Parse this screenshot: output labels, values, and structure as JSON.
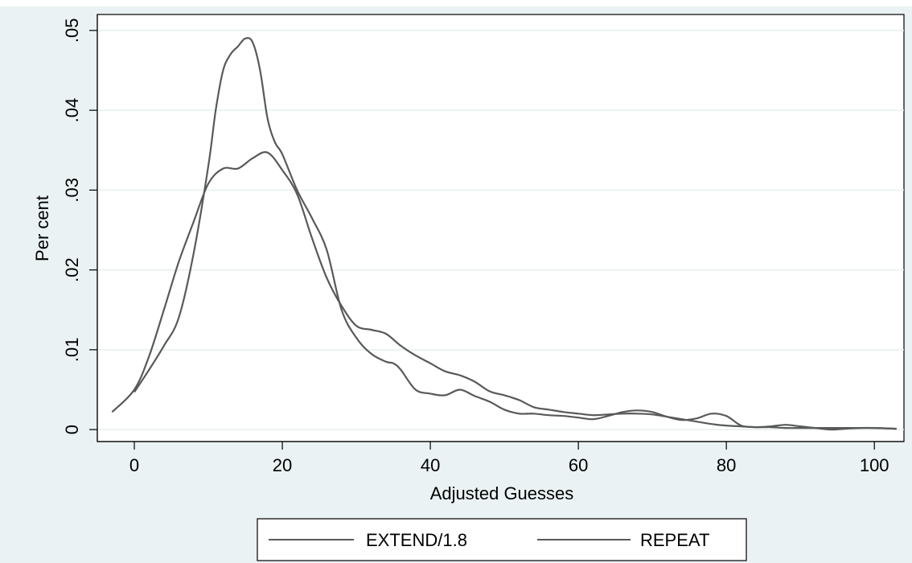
{
  "chart_data": {
    "type": "line",
    "title": "",
    "xlabel": "Adjusted Guesses",
    "ylabel": "Per cent",
    "xlim": [
      -5,
      104
    ],
    "ylim": [
      -0.0015,
      0.052
    ],
    "x_ticks": [
      0,
      20,
      40,
      60,
      80,
      100
    ],
    "x_tick_labels": [
      "0",
      "20",
      "40",
      "60",
      "80",
      "100"
    ],
    "y_ticks": [
      0,
      0.01,
      0.02,
      0.03,
      0.04,
      0.05
    ],
    "y_tick_labels": [
      "0",
      ".01",
      ".02",
      ".03",
      ".04",
      ".05"
    ],
    "grid": "horizontal",
    "legend_position": "bottom",
    "line_color": "#595959",
    "series": [
      {
        "name": "EXTEND/1.8",
        "x": [
          -3,
          0,
          2,
          4,
          6,
          8,
          10,
          12,
          14,
          16,
          18,
          20,
          22,
          24,
          26,
          28,
          30,
          32,
          34,
          36,
          38,
          40,
          42,
          44,
          46,
          48,
          50,
          52,
          54,
          56,
          58,
          60,
          62,
          64,
          66,
          68,
          70,
          72,
          74,
          76,
          78,
          80,
          82,
          84,
          86,
          88,
          90,
          92,
          94,
          96,
          98,
          100,
          103
        ],
        "y": [
          0.0022,
          0.005,
          0.0092,
          0.015,
          0.021,
          0.026,
          0.0308,
          0.0327,
          0.0327,
          0.034,
          0.0347,
          0.0325,
          0.0295,
          0.024,
          0.019,
          0.0155,
          0.013,
          0.0125,
          0.012,
          0.0105,
          0.0093,
          0.0083,
          0.0073,
          0.0068,
          0.006,
          0.0048,
          0.0043,
          0.0037,
          0.0028,
          0.0025,
          0.0022,
          0.002,
          0.0018,
          0.0019,
          0.002,
          0.002,
          0.0019,
          0.0016,
          0.0013,
          0.001,
          0.0007,
          0.0005,
          0.0004,
          0.0003,
          0.0003,
          0.0002,
          0.0002,
          0.0002,
          0.0002,
          0.0002,
          0.0002,
          0.0002,
          0.0001
        ]
      },
      {
        "name": "REPEAT",
        "x": [
          0,
          2,
          4,
          6,
          8,
          10,
          11,
          12,
          13,
          14,
          15,
          16,
          17,
          18,
          19,
          20,
          22,
          24,
          26,
          28,
          30,
          32,
          34,
          35,
          36,
          38,
          40,
          42,
          44,
          46,
          48,
          50,
          52,
          54,
          56,
          58,
          60,
          62,
          64,
          66,
          68,
          70,
          72,
          74,
          76,
          78,
          80,
          82,
          84,
          86,
          88,
          90,
          92,
          94,
          96,
          98,
          100,
          103
        ],
        "y": [
          0.0047,
          0.0075,
          0.0105,
          0.014,
          0.022,
          0.033,
          0.04,
          0.045,
          0.047,
          0.048,
          0.049,
          0.0485,
          0.045,
          0.039,
          0.036,
          0.0345,
          0.03,
          0.0265,
          0.0225,
          0.015,
          0.0115,
          0.0095,
          0.0085,
          0.0083,
          0.0075,
          0.005,
          0.0045,
          0.0043,
          0.005,
          0.0042,
          0.0035,
          0.0025,
          0.002,
          0.002,
          0.0018,
          0.0017,
          0.0015,
          0.0013,
          0.0017,
          0.0022,
          0.0024,
          0.0022,
          0.0016,
          0.0012,
          0.0014,
          0.002,
          0.0017,
          0.0005,
          0.0003,
          0.0004,
          0.0006,
          0.0004,
          0.0002,
          0.0,
          0.0001,
          0.0002,
          0.0002,
          0.0001
        ]
      }
    ]
  }
}
